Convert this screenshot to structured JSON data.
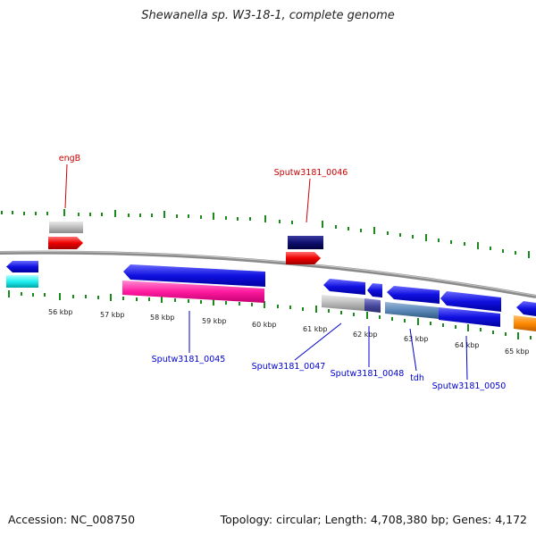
{
  "title": "Shewanella sp. W3-18-1, complete genome",
  "footer": {
    "accession": "Accession: NC_008750",
    "topology": "Topology: circular; Length: 4,708,380 bp; Genes: 4,172"
  },
  "colors": {
    "backbone": "#888888",
    "tick": "#1a8a1a",
    "label_red": "#cc0000",
    "label_blue": "#0000cc"
  },
  "scale": {
    "labels": [
      "56 kbp",
      "57 kbp",
      "58 kbp",
      "59 kbp",
      "60 kbp",
      "61 kbp",
      "62 kbp",
      "63 kbp",
      "64 kbp",
      "65 kbp"
    ]
  },
  "gene_labels": {
    "engB": "engB",
    "s0046": "Sputw3181_0046",
    "s0045": "Sputw3181_0045",
    "s0047": "Sputw3181_0047",
    "s0048": "Sputw3181_0048",
    "tdh": "tdh",
    "s0050": "Sputw3181_0050"
  }
}
